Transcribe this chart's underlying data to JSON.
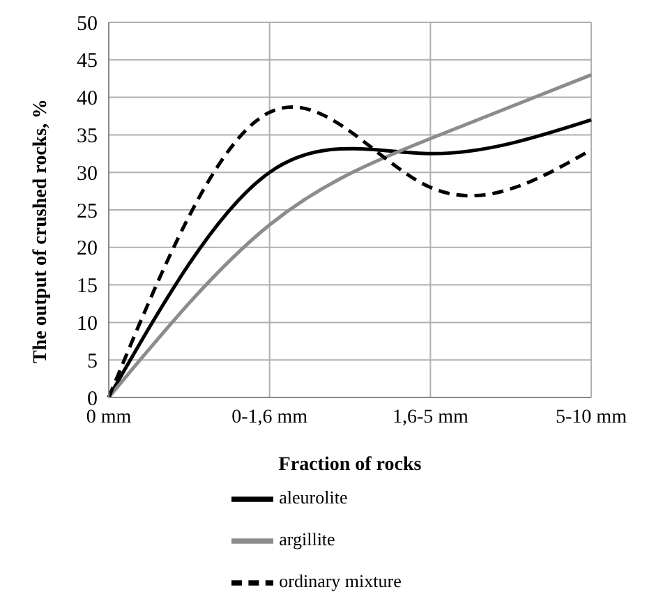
{
  "chart_data": {
    "type": "line",
    "xlabel": "Fraction of rocks",
    "ylabel": "The output of crushed rocks, %",
    "categories": [
      "0 mm",
      "0-1,6 mm",
      "1,6-5 mm",
      "5-10 mm"
    ],
    "series": [
      {
        "name": "aleurolite",
        "color": "#000000",
        "values": [
          0,
          30,
          32.5,
          37
        ],
        "line_style": "solid"
      },
      {
        "name": "argillite",
        "color": "#8c8c8c",
        "values": [
          0,
          23,
          34.5,
          43
        ],
        "line_style": "solid"
      },
      {
        "name": "ordinary mixture",
        "color": "#000000",
        "values": [
          0,
          38,
          28,
          33
        ],
        "line_style": "dashed"
      }
    ],
    "ylim": [
      0,
      50
    ],
    "yticks": [
      0,
      5,
      10,
      15,
      20,
      25,
      30,
      35,
      40,
      45,
      50
    ],
    "grid": true,
    "legend": "bottom",
    "marker": "none"
  }
}
